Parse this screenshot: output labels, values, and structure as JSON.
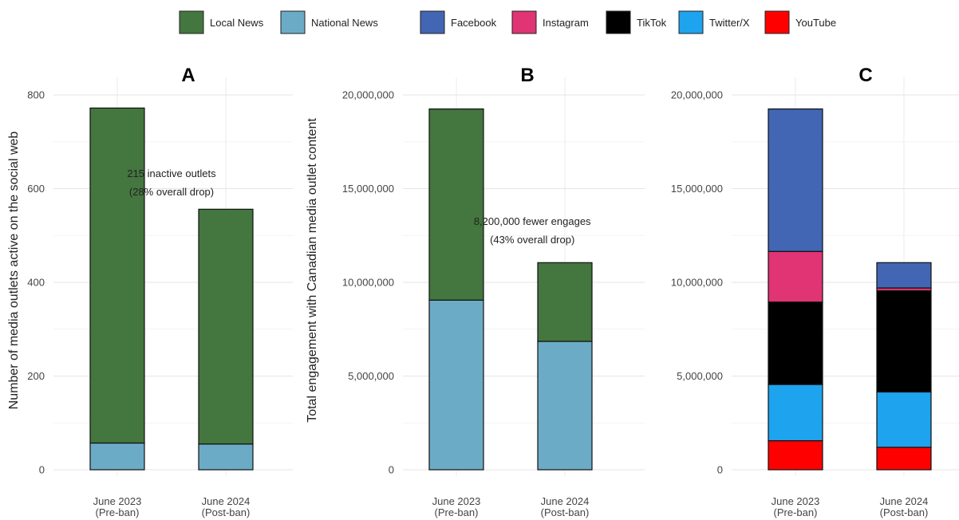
{
  "legend": {
    "items": [
      {
        "label": "Local News",
        "color": "#44763F"
      },
      {
        "label": "National News",
        "color": "#6CABC5"
      },
      {
        "label": "Facebook",
        "color": "#4266B4"
      },
      {
        "label": "Instagram",
        "color": "#E03474"
      },
      {
        "label": "TikTok",
        "color": "#000000"
      },
      {
        "label": "Twitter/X",
        "color": "#1EA3EE"
      },
      {
        "label": "YouTube",
        "color": "#FF0000"
      }
    ]
  },
  "chart_data": [
    {
      "type": "bar",
      "stacked": true,
      "title": "A",
      "ylabel": "Number of media outlets active on the social web",
      "xlabel": "",
      "categories": [
        [
          "June 2023",
          "(Pre-ban)"
        ],
        [
          "June 2024",
          "(Post-ban)"
        ]
      ],
      "ylim": [
        0,
        800
      ],
      "yticks": [
        0,
        200,
        400,
        600,
        800
      ],
      "ytick_labels": [
        "0",
        "200",
        "400",
        "600",
        "800"
      ],
      "grid": true,
      "series": [
        {
          "name": "National News",
          "color": "#6CABC5",
          "values": [
            57,
            55
          ]
        },
        {
          "name": "Local News",
          "color": "#44763F",
          "values": [
            715,
            501
          ]
        }
      ],
      "annotation": {
        "lines": [
          "215 inactive outlets",
          "(28% overall drop)"
        ],
        "x": 1.5,
        "y": 630
      }
    },
    {
      "type": "bar",
      "stacked": true,
      "title": "B",
      "ylabel": "Total engagement with Canadian media outlet content",
      "xlabel": "",
      "categories": [
        [
          "June 2023",
          "(Pre-ban)"
        ],
        [
          "June 2024",
          "(Post-ban)"
        ]
      ],
      "ylim": [
        0,
        20000000
      ],
      "yticks": [
        0,
        5000000,
        10000000,
        15000000,
        20000000
      ],
      "ytick_labels": [
        "0",
        "5,000,000",
        "10,000,000",
        "15,000,000",
        "20,000,000"
      ],
      "grid": true,
      "series": [
        {
          "name": "National News",
          "color": "#6CABC5",
          "values": [
            9050000,
            6850000
          ]
        },
        {
          "name": "Local News",
          "color": "#44763F",
          "values": [
            10200000,
            4200000
          ]
        }
      ],
      "annotation": {
        "lines": [
          "8,200,000 fewer engages",
          "(43% overall drop)"
        ],
        "x": 1.7,
        "y": 13000000
      }
    },
    {
      "type": "bar",
      "stacked": true,
      "title": "C",
      "ylabel": "",
      "xlabel": "",
      "categories": [
        [
          "June 2023",
          "(Pre-ban)"
        ],
        [
          "June 2024",
          "(Post-ban)"
        ]
      ],
      "ylim": [
        0,
        20000000
      ],
      "yticks": [
        0,
        5000000,
        10000000,
        15000000,
        20000000
      ],
      "ytick_labels": [
        "0",
        "5,000,000",
        "10,000,000",
        "15,000,000",
        "20,000,000"
      ],
      "grid": true,
      "series": [
        {
          "name": "YouTube",
          "color": "#FF0000",
          "values": [
            1550000,
            1200000
          ]
        },
        {
          "name": "Twitter/X",
          "color": "#1EA3EE",
          "values": [
            3000000,
            2950000
          ]
        },
        {
          "name": "TikTok",
          "color": "#000000",
          "values": [
            4400000,
            5400000
          ]
        },
        {
          "name": "Instagram",
          "color": "#E03474",
          "values": [
            2700000,
            150000
          ]
        },
        {
          "name": "Facebook",
          "color": "#4266B4",
          "values": [
            7600000,
            1350000
          ]
        }
      ]
    }
  ]
}
